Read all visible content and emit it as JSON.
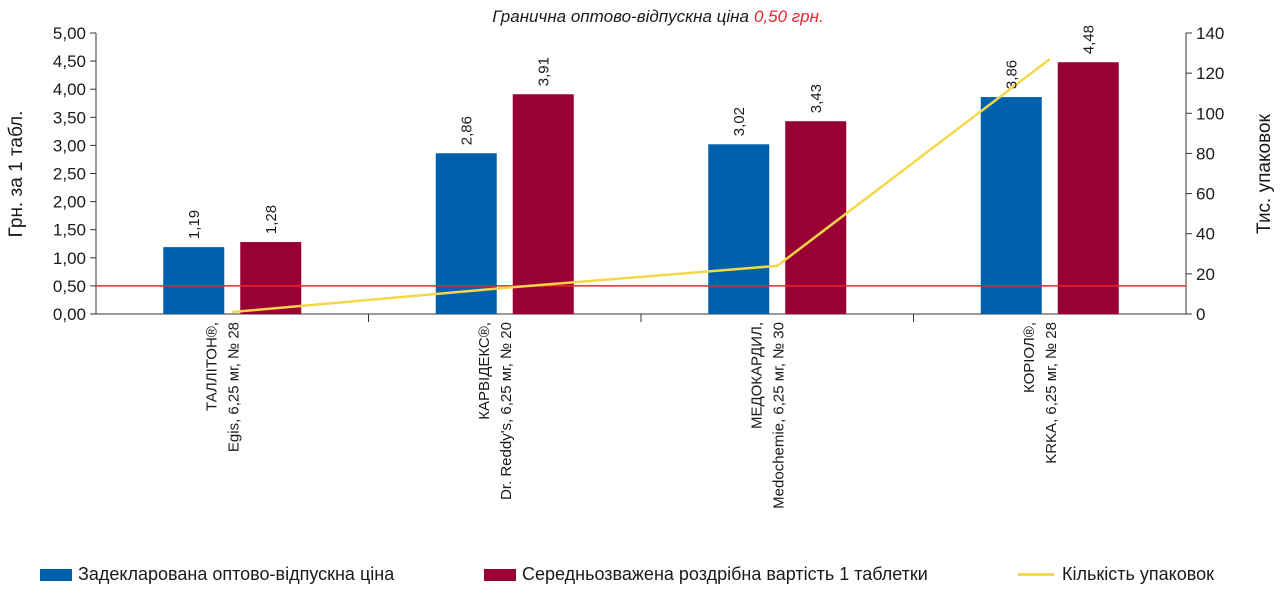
{
  "annotation": {
    "prefix": "Гранична оптово-відпускна ціна",
    "value": "0,50 грн."
  },
  "colors": {
    "declared": "#0060ac",
    "retail": "#990033",
    "packages": "#f5d848",
    "threshold": "#e8262d",
    "axis": "#333333"
  },
  "chart_data": {
    "type": "bar",
    "categories": [
      {
        "line1": "ТАЛЛІТОН®,",
        "line2": "Egis, 6,25 мг, № 28"
      },
      {
        "line1": "КАРВІДЕКС®,",
        "line2": "Dr. Reddy's, 6,25 мг, № 20"
      },
      {
        "line1": "МЕДОКАРДИЛ,",
        "line2": "Medochemie, 6,25 мг, № 30"
      },
      {
        "line1": "КОРІОЛ®,",
        "line2": "KRKA, 6,25 мг, № 28"
      }
    ],
    "series": [
      {
        "name": "Задекларована оптово-відпускна ціна",
        "type": "bar",
        "axis": "left",
        "values": [
          1.19,
          2.86,
          3.02,
          3.86
        ],
        "labels": [
          "1,19",
          "2,86",
          "3,02",
          "3,86"
        ]
      },
      {
        "name": "Середньозважена роздрібна вартість 1 таблетки",
        "type": "bar",
        "axis": "left",
        "values": [
          1.28,
          3.91,
          3.43,
          4.48
        ],
        "labels": [
          "1,28",
          "3,91",
          "3,43",
          "4,48"
        ]
      },
      {
        "name": "Кількість упаковок",
        "type": "line",
        "axis": "right",
        "values": [
          1,
          13,
          24,
          127
        ]
      }
    ],
    "threshold": 0.5,
    "ylabel": "Грн. за 1 табл.",
    "y2label": "Тис. упаковок",
    "ylim": [
      0,
      5
    ],
    "y2lim": [
      0,
      140
    ],
    "yticks": [
      "0,00",
      "0,50",
      "1,00",
      "1,50",
      "2,00",
      "2,50",
      "3,00",
      "3,50",
      "4,00",
      "4,50",
      "5,00"
    ],
    "y2ticks": [
      "0",
      "20",
      "40",
      "60",
      "80",
      "100",
      "120",
      "140"
    ],
    "legend_position": "bottom"
  }
}
